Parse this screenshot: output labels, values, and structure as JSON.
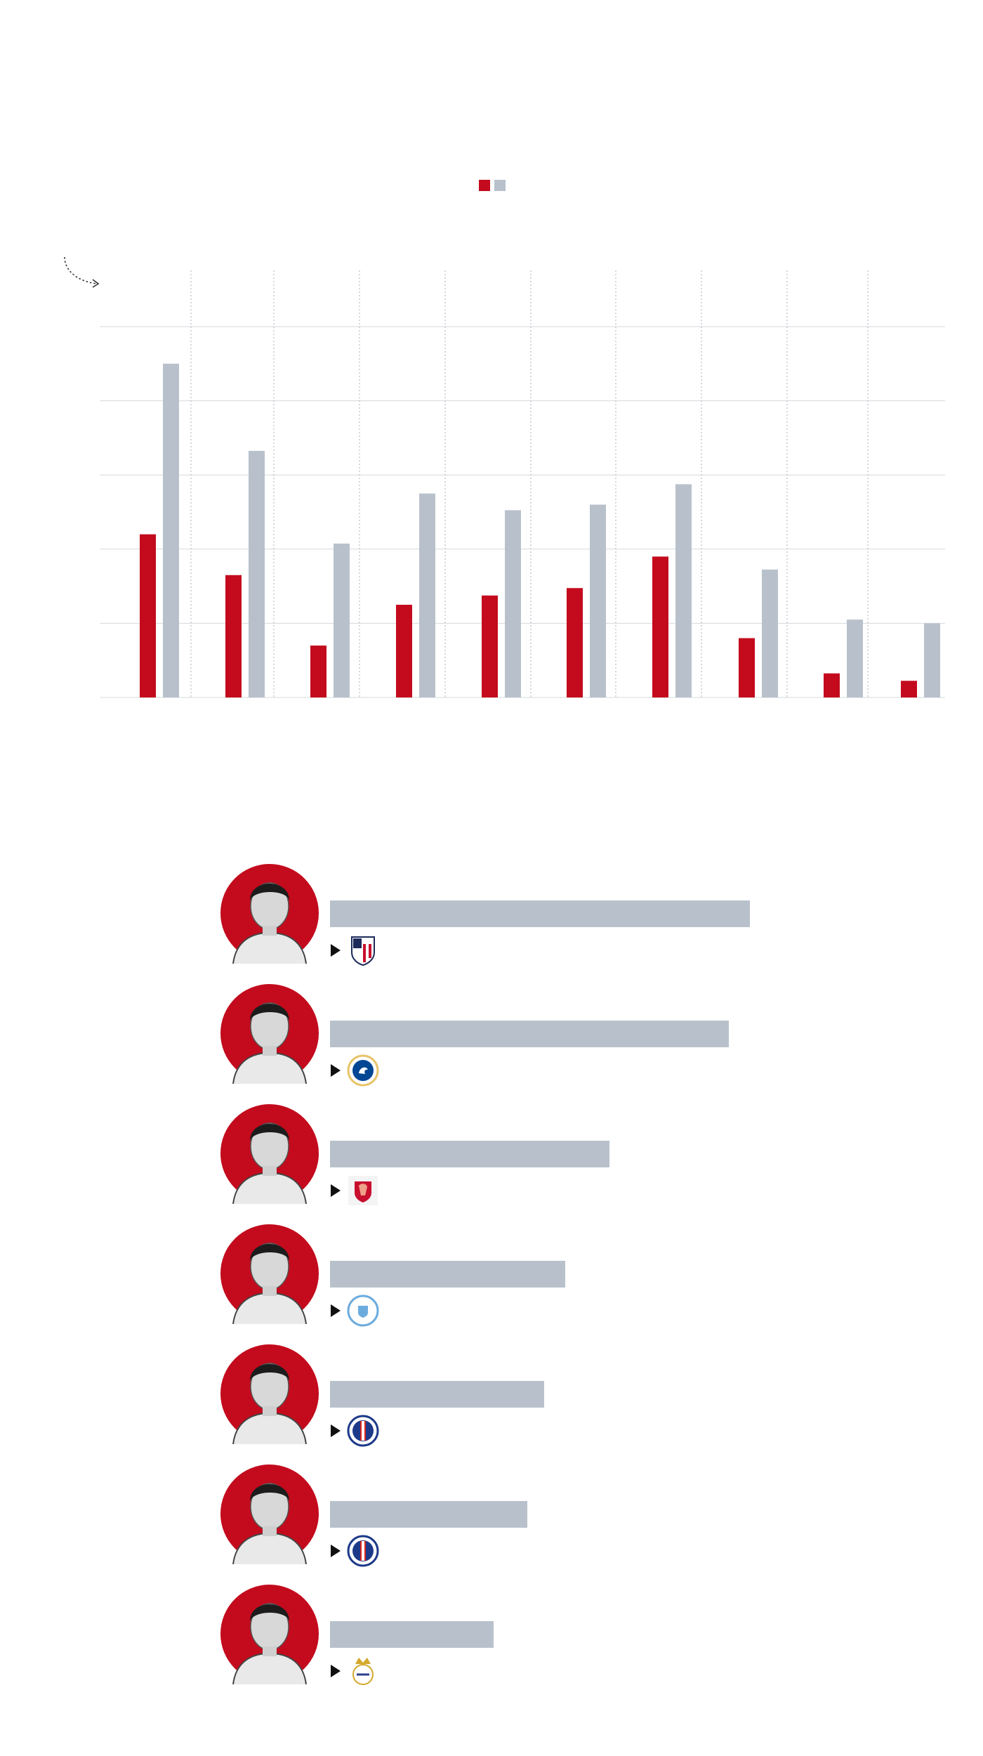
{
  "colors": {
    "series_a": "#c30b1d",
    "series_b": "#b8c1cb",
    "grid": "#d5d9de",
    "avatar_bg": "#c30b1d"
  },
  "chart_data": {
    "type": "bar",
    "categories": [
      "",
      "",
      "",
      "",
      "",
      "",
      "",
      "",
      "",
      ""
    ],
    "series": [
      {
        "values": [
          44,
          33,
          14,
          25,
          27.5,
          29.5,
          38,
          16,
          6.5,
          4.5
        ]
      },
      {
        "values": [
          90,
          66.5,
          41.5,
          55,
          50.5,
          52,
          57.5,
          34.5,
          21,
          20
        ]
      }
    ],
    "ylim": [
      0,
      100
    ],
    "gridlines": [
      0,
      20,
      40,
      60,
      80,
      100
    ],
    "grid": true,
    "legend": "top-center"
  },
  "players_chart": {
    "type": "bar",
    "orientation": "horizontal",
    "players": [
      {
        "avatar_icon": "player-portrait-icon",
        "club_icon": "atletico-madrid-crest-icon",
        "value": 100
      },
      {
        "avatar_icon": "player-portrait-icon",
        "club_icon": "chelsea-crest-icon",
        "value": 95
      },
      {
        "avatar_icon": "player-portrait-icon",
        "club_icon": "liverpool-crest-icon",
        "value": 66.5
      },
      {
        "avatar_icon": "player-portrait-icon",
        "club_icon": "manchester-city-crest-icon",
        "value": 56
      },
      {
        "avatar_icon": "player-portrait-icon",
        "club_icon": "psg-crest-icon",
        "value": 51
      },
      {
        "avatar_icon": "player-portrait-icon",
        "club_icon": "psg-crest-icon",
        "value": 47
      },
      {
        "avatar_icon": "player-portrait-icon",
        "club_icon": "real-madrid-crest-icon",
        "value": 39
      }
    ]
  }
}
